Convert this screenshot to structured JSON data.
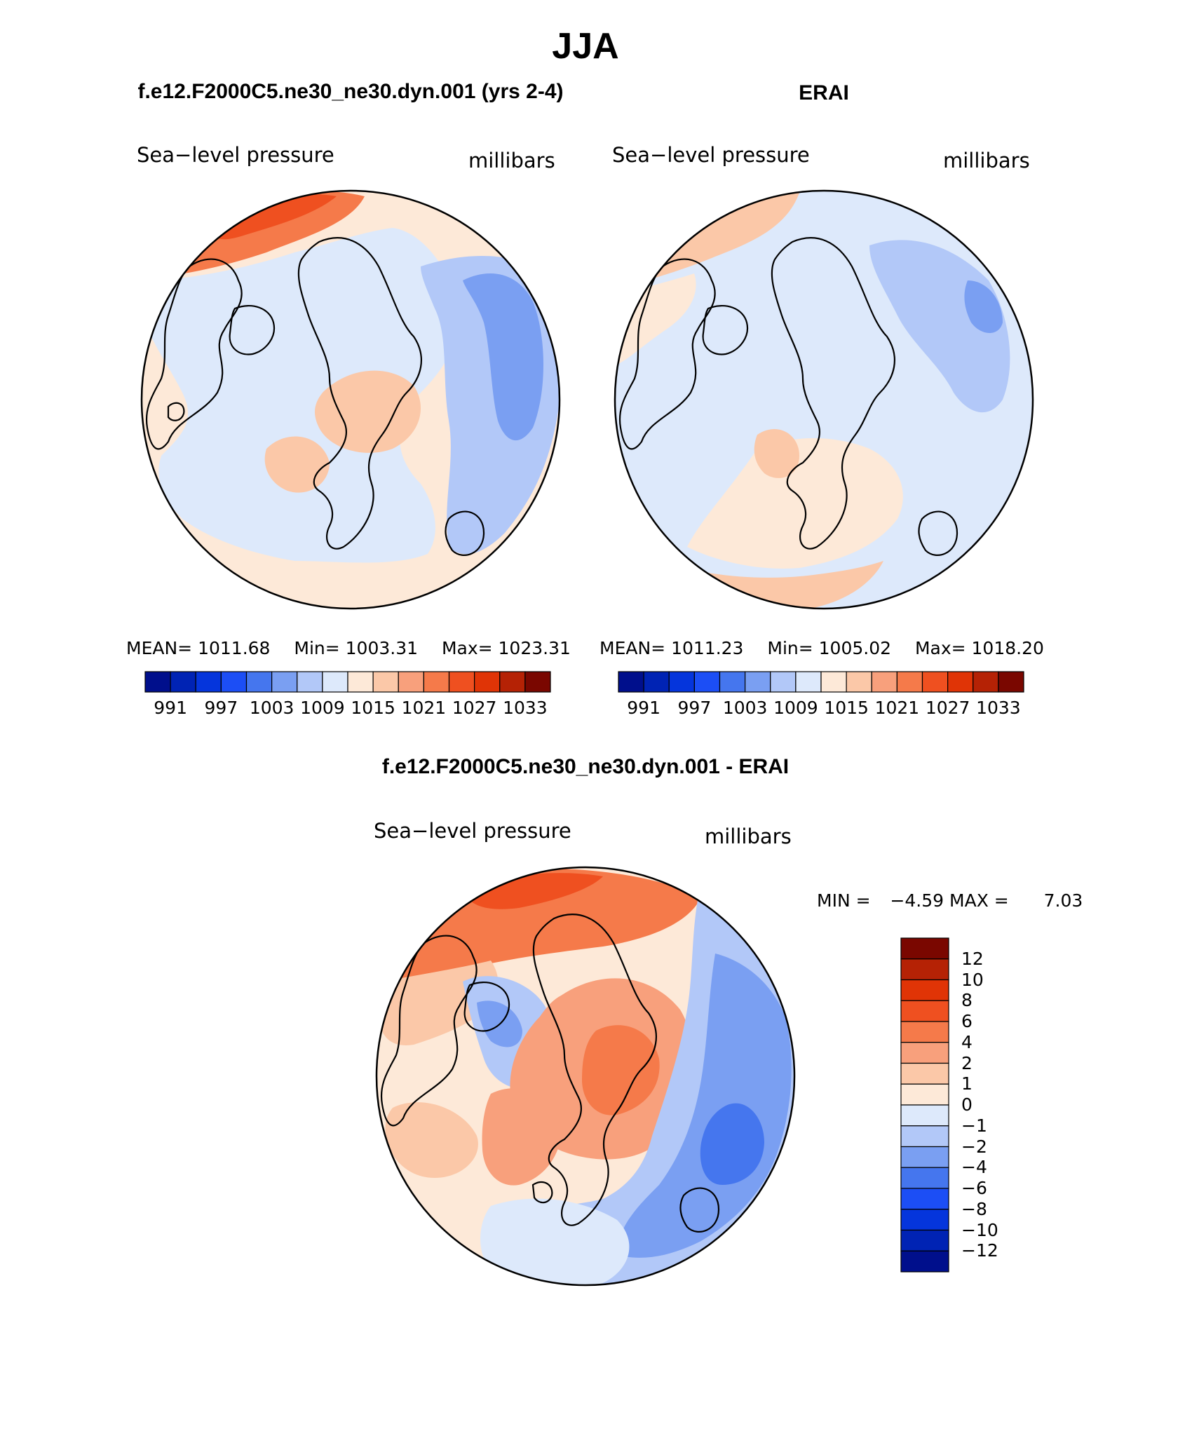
{
  "figure": {
    "season_title": "JJA",
    "colors": {
      "neg": [
        "#000f8c",
        "#0023b4",
        "#0535dc",
        "#1c4ef5",
        "#4576ee",
        "#7a9ff2",
        "#b2c8f8",
        "#dde9fb"
      ],
      "pos": [
        "#fde9d8",
        "#fbc8a8",
        "#f8a07c",
        "#f57a4a",
        "#ef5020",
        "#e03406",
        "#b52205",
        "#7a0700"
      ]
    }
  },
  "panel_model": {
    "header": "f.e12.F2000C5.ne30_ne30.dyn.001 (yrs 2-4)",
    "variable": "Sea−level pressure",
    "units": "millibars",
    "stats": {
      "mean_label": "MEAN=",
      "mean": "1011.68",
      "min_label": "Min=",
      "min": "1003.31",
      "max_label": "Max=",
      "max": "1023.31"
    },
    "colorbar_labels": [
      "991",
      "997",
      "1003",
      "1009",
      "1015",
      "1021",
      "1027",
      "1033"
    ]
  },
  "panel_obs": {
    "header": "ERAI",
    "variable": "Sea−level pressure",
    "units": "millibars",
    "stats": {
      "mean_label": "MEAN=",
      "mean": "1011.23",
      "min_label": "Min=",
      "min": "1005.02",
      "max_label": "Max=",
      "max": "1018.20"
    },
    "colorbar_labels": [
      "991",
      "997",
      "1003",
      "1009",
      "1015",
      "1021",
      "1027",
      "1033"
    ]
  },
  "panel_diff": {
    "header": "f.e12.F2000C5.ne30_ne30.dyn.001 - ERAI",
    "variable": "Sea−level pressure",
    "units": "millibars",
    "stats": {
      "min_label": "MIN =",
      "min": "−4.59",
      "max_label": "MAX =",
      "max": "7.03"
    },
    "colorbar_labels": [
      "12",
      "10",
      "8",
      "6",
      "4",
      "2",
      "1",
      "0",
      "−1",
      "−2",
      "−4",
      "−6",
      "−8",
      "−10",
      "−12"
    ]
  }
}
